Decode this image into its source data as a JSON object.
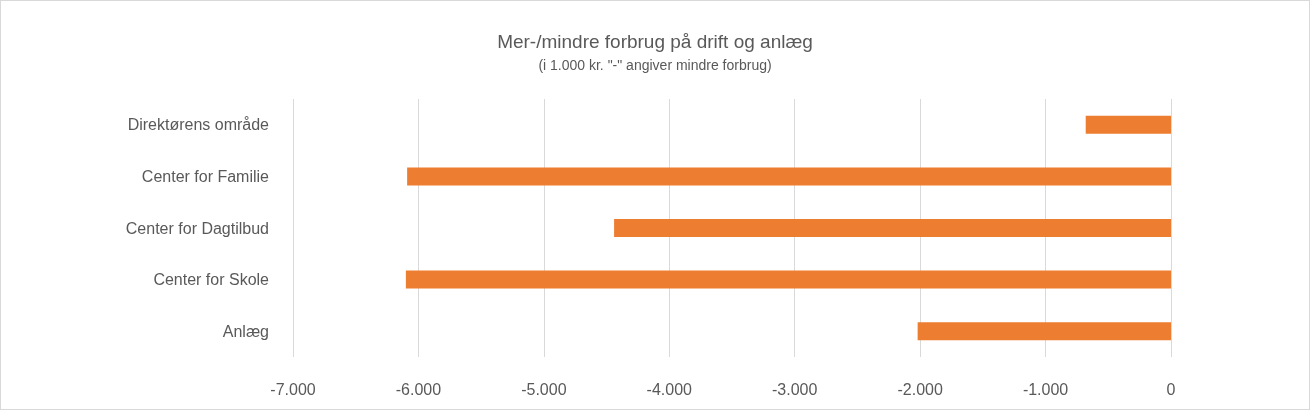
{
  "chart_data": {
    "type": "bar",
    "orientation": "horizontal",
    "title": "Mer-/mindre forbrug på drift og anlæg",
    "subtitle": "(i 1.000 kr. \"-\" angiver mindre forbrug)",
    "categories": [
      "Direktørens område",
      "Center for Familie",
      "Center for Dagtilbud",
      "Center for Skole",
      "Anlæg"
    ],
    "values": [
      -680,
      -6090,
      -4440,
      -6100,
      -2020
    ],
    "color": "#ed7d31",
    "xlim": [
      -7000,
      0
    ],
    "xticks": [
      {
        "value": -7000,
        "label": "-7.000"
      },
      {
        "value": -6000,
        "label": "-6.000"
      },
      {
        "value": -5000,
        "label": "-5.000"
      },
      {
        "value": -4000,
        "label": "-4.000"
      },
      {
        "value": -3000,
        "label": "-3.000"
      },
      {
        "value": -2000,
        "label": "-2.000"
      },
      {
        "value": -1000,
        "label": "-1.000"
      },
      0
    ],
    "grid": "x"
  }
}
